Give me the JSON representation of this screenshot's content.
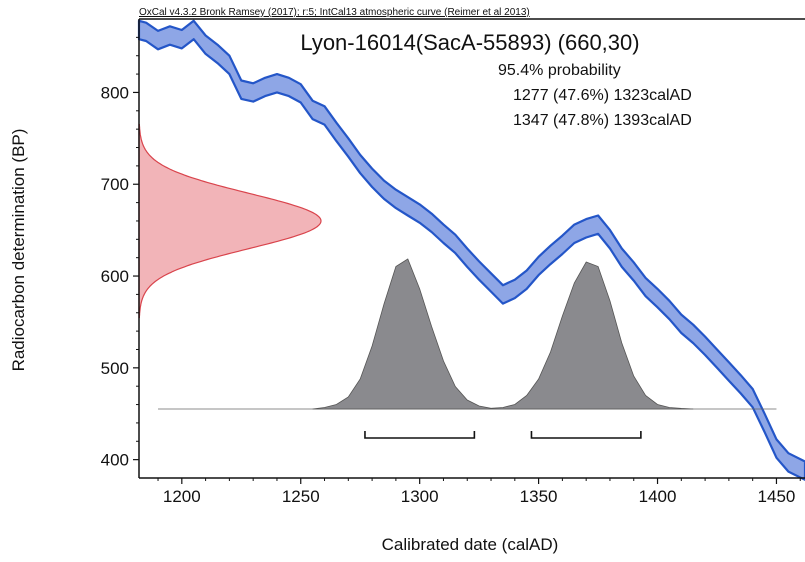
{
  "header": {
    "source_line": "OxCal v4.3.2 Bronk Ramsey (2017); r:5; IntCal13 atmospheric curve (Reimer et al 2013)"
  },
  "chart_data": {
    "type": "area",
    "title": "Lyon-16014(SacA-55893) (660,30)",
    "probability_label": "95.4% probability",
    "ranges": [
      {
        "text": "1277 (47.6%) 1323calAD",
        "from": 1277,
        "to": 1323
      },
      {
        "text": "1347 (47.8%) 1393calAD",
        "from": 1347,
        "to": 1393
      }
    ],
    "xlabel": "Calibrated date (calAD)",
    "ylabel": "Radiocarbon determination (BP)",
    "xlim": [
      1182,
      1462
    ],
    "ylim": [
      380,
      880
    ],
    "x_ticks": [
      1200,
      1250,
      1300,
      1350,
      1400,
      1450
    ],
    "y_ticks": [
      400,
      500,
      600,
      700,
      800
    ],
    "grid": false,
    "radiocarbon_date": {
      "mean": 660,
      "sigma": 30
    },
    "calibration_curve": {
      "name": "IntCal13",
      "x": [
        1182,
        1185,
        1190,
        1195,
        1200,
        1205,
        1210,
        1215,
        1220,
        1225,
        1230,
        1235,
        1240,
        1245,
        1250,
        1255,
        1260,
        1265,
        1270,
        1275,
        1280,
        1285,
        1290,
        1295,
        1300,
        1305,
        1310,
        1315,
        1320,
        1325,
        1330,
        1335,
        1340,
        1345,
        1350,
        1355,
        1360,
        1365,
        1370,
        1375,
        1380,
        1385,
        1390,
        1395,
        1400,
        1405,
        1410,
        1415,
        1420,
        1425,
        1430,
        1435,
        1440,
        1445,
        1450,
        1455,
        1462
      ],
      "y": [
        868,
        866,
        857,
        862,
        858,
        868,
        852,
        842,
        830,
        803,
        800,
        806,
        810,
        806,
        799,
        781,
        775,
        757,
        740,
        722,
        707,
        694,
        684,
        676,
        668,
        658,
        646,
        635,
        620,
        606,
        593,
        580,
        586,
        596,
        611,
        623,
        634,
        646,
        652,
        656,
        640,
        620,
        605,
        588,
        576,
        563,
        548,
        537,
        524,
        510,
        496,
        482,
        467,
        440,
        412,
        397,
        388
      ],
      "band_halfwidth": 10
    },
    "calibrated_probability": {
      "x": [
        1255,
        1260,
        1265,
        1270,
        1275,
        1280,
        1285,
        1290,
        1295,
        1300,
        1305,
        1310,
        1315,
        1320,
        1325,
        1330,
        1335,
        1340,
        1345,
        1350,
        1355,
        1360,
        1365,
        1370,
        1375,
        1380,
        1385,
        1390,
        1395,
        1400,
        1405,
        1410,
        1415
      ],
      "y": [
        0,
        0.01,
        0.03,
        0.08,
        0.2,
        0.42,
        0.7,
        0.95,
        1.0,
        0.8,
        0.55,
        0.32,
        0.15,
        0.06,
        0.02,
        0.005,
        0.01,
        0.03,
        0.09,
        0.2,
        0.38,
        0.62,
        0.84,
        0.98,
        0.95,
        0.72,
        0.44,
        0.22,
        0.09,
        0.03,
        0.01,
        0.004,
        0
      ]
    },
    "baseline_range": [
      1190,
      1450
    ]
  }
}
